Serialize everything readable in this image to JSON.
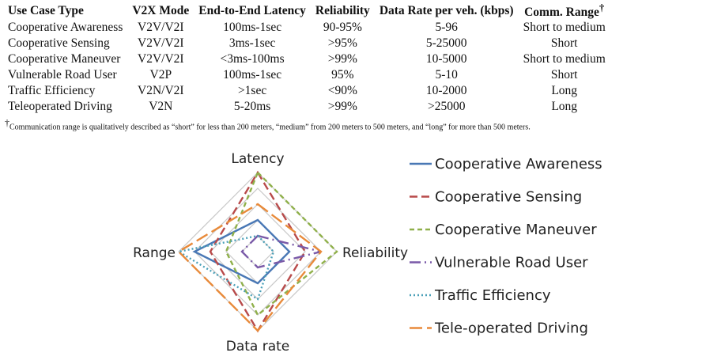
{
  "table": {
    "headers": [
      "Use Case Type",
      "V2X Mode",
      "End-to-End Latency",
      "Reliability",
      "Data Rate per veh. (kbps)",
      "Comm. Range"
    ],
    "header_mark": "†",
    "rows": [
      [
        "Cooperative Awareness",
        "V2V/V2I",
        "100ms-1sec",
        "90-95%",
        "5-96",
        "Short to medium"
      ],
      [
        "Cooperative Sensing",
        "V2V/V2I",
        "3ms-1sec",
        ">95%",
        "5-25000",
        "Short"
      ],
      [
        "Cooperative Maneuver",
        "V2V/V2I",
        "<3ms-100ms",
        ">99%",
        "10-5000",
        "Short to medium"
      ],
      [
        "Vulnerable Road User",
        "V2P",
        "100ms-1sec",
        "95%",
        "5-10",
        "Short"
      ],
      [
        "Traffic Efficiency",
        "V2N/V2I",
        ">1sec",
        "<90%",
        "10-2000",
        "Long"
      ],
      [
        "Teleoperated Driving",
        "V2N",
        "5-20ms",
        ">99%",
        ">25000",
        "Long"
      ]
    ],
    "footnote_mark": "†",
    "footnote": "Communication range is qualitatively described as “short” for less than 200 meters, “medium” from 200 meters to 500 meters, and “long” for more than 500 meters."
  },
  "chart_data": {
    "type": "radar",
    "axes": [
      "Latency",
      "Reliability",
      "Data rate",
      "Range"
    ],
    "range": [
      0,
      5
    ],
    "grid": true,
    "legend_position": "right",
    "series": [
      {
        "name": "Cooperative Awareness",
        "values": [
          2,
          2,
          2,
          4
        ],
        "color": "#4a78b5",
        "dash": "solid"
      },
      {
        "name": "Cooperative Sensing",
        "values": [
          5,
          3,
          5,
          3
        ],
        "color": "#b84a4a",
        "dash": "dashed"
      },
      {
        "name": "Cooperative Maneuver",
        "values": [
          5,
          5,
          4,
          2
        ],
        "color": "#8fb04a",
        "dash": "short-dash"
      },
      {
        "name": "Vulnerable Road User",
        "values": [
          1,
          4,
          1,
          1
        ],
        "color": "#7a5aa8",
        "dash": "long-dash-dot"
      },
      {
        "name": "Traffic Efficiency",
        "values": [
          1,
          1,
          3,
          5
        ],
        "color": "#4aa0b8",
        "dash": "dotted"
      },
      {
        "name": "Tele-operated Driving",
        "values": [
          3,
          4,
          5,
          5
        ],
        "color": "#e88a3a",
        "dash": "long-dash"
      }
    ]
  }
}
